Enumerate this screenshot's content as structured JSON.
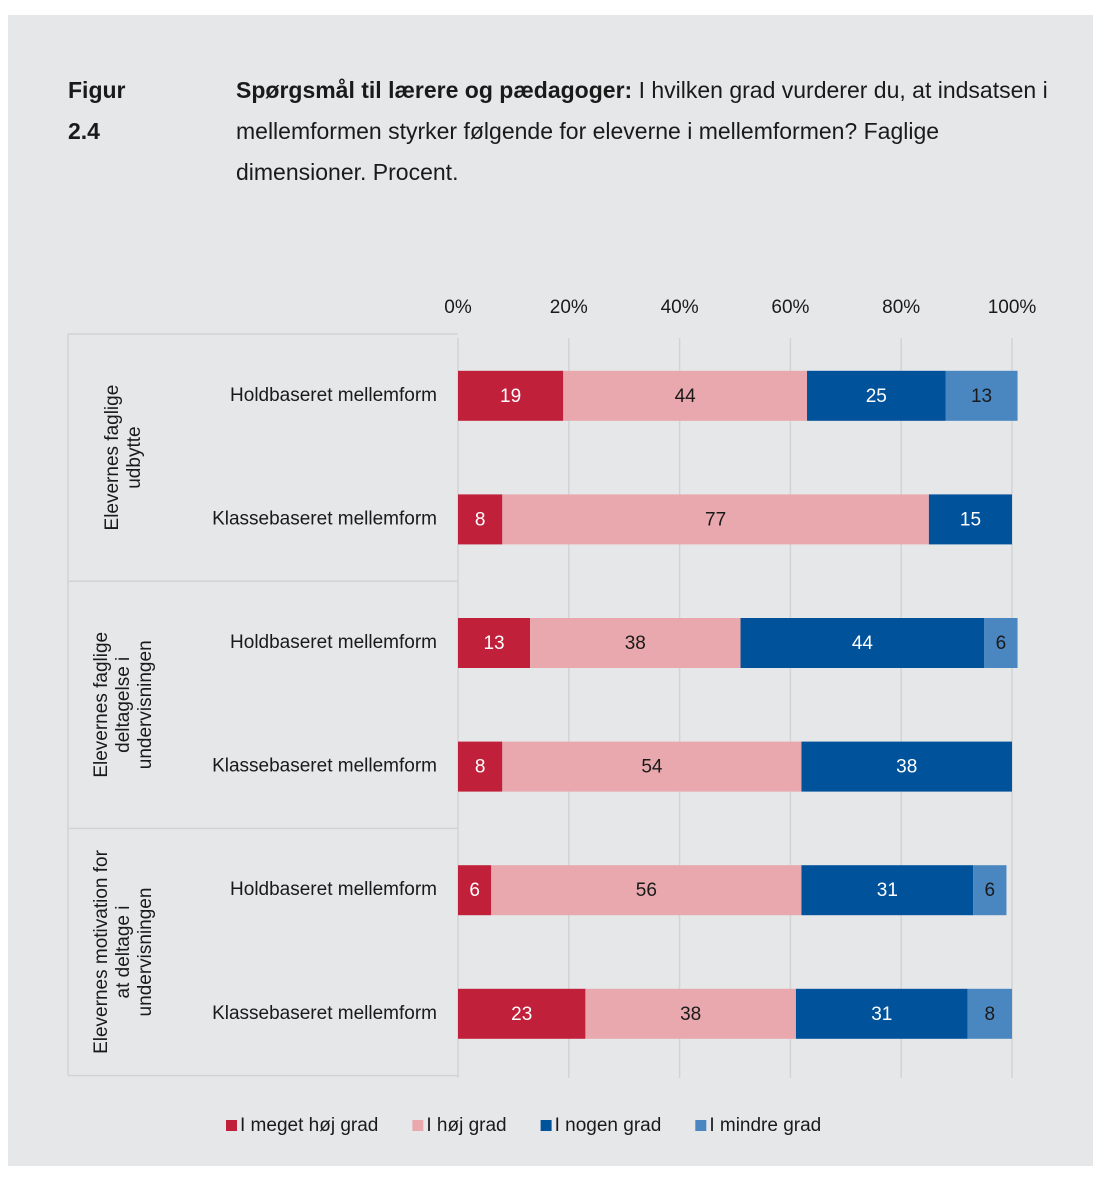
{
  "chart_data": {
    "type": "bar",
    "orientation": "horizontal",
    "stacked": true,
    "figure_label": "Figur 2.4",
    "title_bold": "Spørgsmål til lærere og pædagoger:",
    "title": "I hvilken grad vurderer du, at indsatsen i mellemformen styrker følgende for eleverne i mellemformen? Faglige dimensioner. Procent.",
    "groups": [
      "Elevernes faglige udbytte",
      "Elevernes faglige deltagelse i undervisningen",
      "Elevernes motivation for at deltage i undervisningen"
    ],
    "categories": [
      "Holdbaseret mellemform",
      "Klassebaseret mellemform",
      "Holdbaseret mellemform",
      "Klassebaseret mellemform",
      "Holdbaseret mellemform",
      "Klassebaseret mellemform"
    ],
    "series": [
      {
        "name": "I meget høj grad",
        "color": "#c0203a",
        "values": [
          19,
          8,
          13,
          8,
          6,
          23
        ]
      },
      {
        "name": "I høj grad",
        "color": "#e8a8ad",
        "values": [
          44,
          77,
          38,
          54,
          56,
          38
        ]
      },
      {
        "name": "I nogen grad",
        "color": "#00529b",
        "values": [
          25,
          15,
          44,
          38,
          31,
          31
        ]
      },
      {
        "name": "I mindre grad",
        "color": "#4a86c0",
        "values": [
          13,
          null,
          6,
          null,
          6,
          8
        ]
      }
    ],
    "xlim": [
      0,
      100
    ],
    "xticks": [
      {
        "value": 0,
        "label": "0%"
      },
      {
        "value": 20,
        "label": "20%"
      },
      {
        "value": 40,
        "label": "40%"
      },
      {
        "value": 60,
        "label": "60%"
      },
      {
        "value": 80,
        "label": "80%"
      },
      {
        "value": 100,
        "label": "100%"
      }
    ],
    "grid": true,
    "legend": "bottom"
  }
}
